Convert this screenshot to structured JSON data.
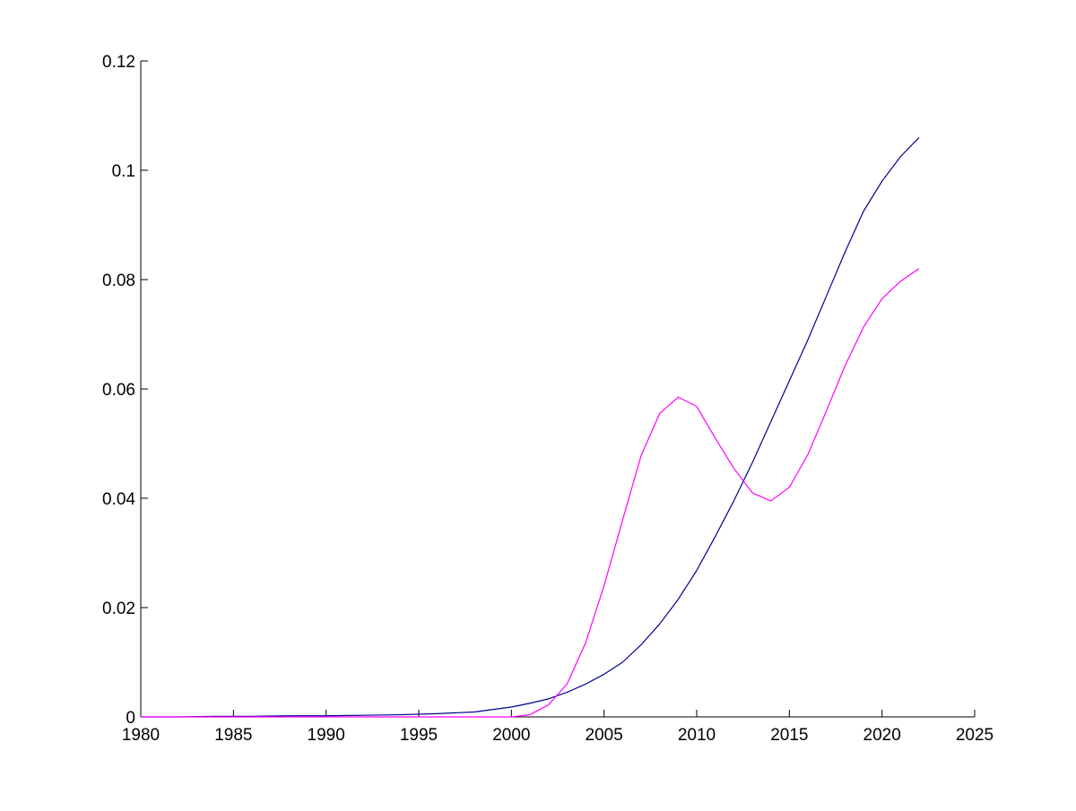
{
  "chart_data": {
    "type": "line",
    "title": "",
    "xlabel": "",
    "ylabel": "",
    "xlim": [
      1980,
      2025
    ],
    "ylim": [
      0,
      0.12
    ],
    "xticks": [
      1980,
      1985,
      1990,
      1995,
      2000,
      2005,
      2010,
      2015,
      2020,
      2025
    ],
    "xtick_labels": [
      "1980",
      "1985",
      "1990",
      "1995",
      "2000",
      "2005",
      "2010",
      "2015",
      "2020",
      "2025"
    ],
    "yticks": [
      0,
      0.02,
      0.04,
      0.06,
      0.08,
      0.1,
      0.12
    ],
    "ytick_labels": [
      "0",
      "0.02",
      "0.04",
      "0.06",
      "0.08",
      "0.1",
      "0.12"
    ],
    "grid": false,
    "legend": "none",
    "series": [
      {
        "color": "#00008b",
        "x": [
          1980,
          1982,
          1984,
          1986,
          1988,
          1990,
          1992,
          1994,
          1996,
          1998,
          2000,
          2001,
          2002,
          2003,
          2004,
          2005,
          2006,
          2007,
          2008,
          2009,
          2010,
          2011,
          2012,
          2013,
          2014,
          2015,
          2016,
          2017,
          2018,
          2019,
          2020,
          2021,
          2022
        ],
        "y": [
          0.0,
          0.0,
          0.0001,
          0.0001,
          0.0002,
          0.0002,
          0.0003,
          0.0004,
          0.0006,
          0.0009,
          0.0018,
          0.0025,
          0.0033,
          0.0045,
          0.006,
          0.0078,
          0.01,
          0.0132,
          0.017,
          0.0215,
          0.0268,
          0.033,
          0.0395,
          0.0465,
          0.054,
          0.0615,
          0.069,
          0.077,
          0.085,
          0.0925,
          0.098,
          0.1025,
          0.106
        ]
      },
      {
        "color": "#ff00ff",
        "x": [
          1980,
          1985,
          1990,
          1995,
          2000,
          2001,
          2002,
          2003,
          2004,
          2005,
          2006,
          2007,
          2008,
          2009,
          2010,
          2011,
          2012,
          2013,
          2014,
          2015,
          2016,
          2017,
          2018,
          2019,
          2020,
          2021,
          2022
        ],
        "y": [
          0.0,
          0.0,
          0.0,
          0.0,
          0.0,
          0.0004,
          0.0022,
          0.006,
          0.0135,
          0.024,
          0.036,
          0.0478,
          0.0555,
          0.0585,
          0.0568,
          0.051,
          0.0455,
          0.041,
          0.0395,
          0.042,
          0.048,
          0.056,
          0.0642,
          0.0713,
          0.0765,
          0.0797,
          0.082
        ]
      }
    ]
  }
}
